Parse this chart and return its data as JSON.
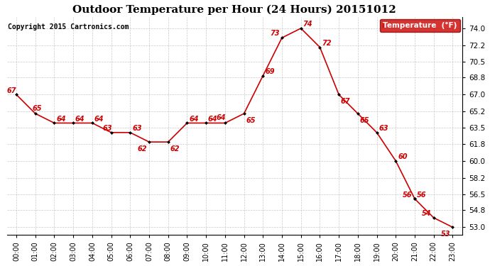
{
  "title": "Outdoor Temperature per Hour (24 Hours) 20151012",
  "copyright": "Copyright 2015 Cartronics.com",
  "legend_label": "Temperature  (°F)",
  "hours": [
    0,
    1,
    2,
    3,
    4,
    5,
    6,
    7,
    8,
    9,
    10,
    11,
    12,
    13,
    14,
    15,
    16,
    17,
    18,
    19,
    20,
    21,
    22,
    23
  ],
  "hour_labels": [
    "00:00",
    "01:00",
    "02:00",
    "03:00",
    "04:00",
    "05:00",
    "06:00",
    "07:00",
    "08:00",
    "09:00",
    "10:00",
    "11:00",
    "12:00",
    "13:00",
    "14:00",
    "15:00",
    "16:00",
    "17:00",
    "18:00",
    "19:00",
    "20:00",
    "21:00",
    "22:00",
    "23:00"
  ],
  "temperatures": [
    67,
    65,
    64,
    64,
    64,
    63,
    63,
    62,
    62,
    64,
    64,
    64,
    65,
    69,
    73,
    74,
    72,
    67,
    65,
    63,
    60,
    56,
    56,
    54,
    53
  ],
  "temp_hours": [
    0,
    1,
    2,
    3,
    4,
    5,
    6,
    7,
    8,
    9,
    10,
    11,
    12,
    13,
    14,
    15,
    16,
    17,
    18,
    19,
    20,
    21,
    21,
    22,
    23
  ],
  "yticks": [
    53.0,
    54.8,
    56.5,
    58.2,
    60.0,
    61.8,
    63.5,
    65.2,
    67.0,
    68.8,
    70.5,
    72.2,
    74.0
  ],
  "ylim": [
    52.2,
    75.2
  ],
  "line_color": "#cc0000",
  "marker_color": "#000000",
  "label_color": "#cc0000",
  "bg_color": "#ffffff",
  "grid_color": "#bbbbbb",
  "legend_bg": "#cc0000",
  "legend_text_color": "#ffffff",
  "title_fontsize": 11,
  "copyright_fontsize": 7,
  "label_fontsize": 7
}
